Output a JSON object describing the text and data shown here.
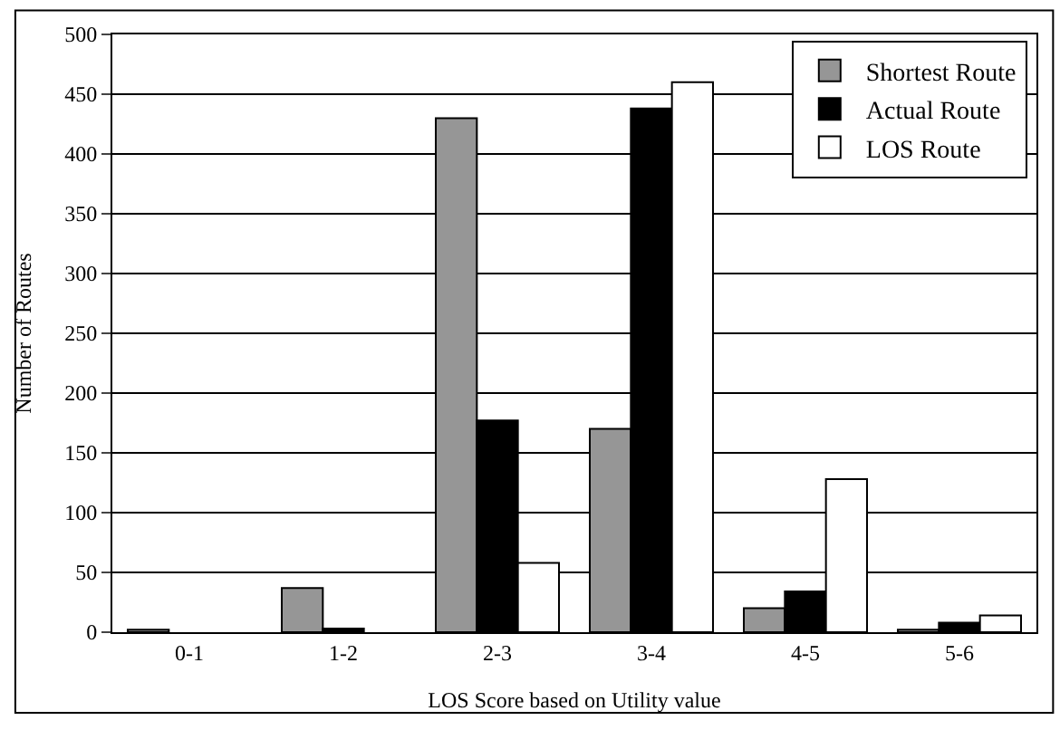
{
  "chart_data": {
    "type": "bar",
    "xlabel": "LOS Score based on Utility value",
    "ylabel": "Number of Routes",
    "categories": [
      "0-1",
      "1-2",
      "2-3",
      "3-4",
      "4-5",
      "5-6"
    ],
    "series": [
      {
        "name": "Shortest Route",
        "color": "#969696",
        "values": [
          2,
          37,
          430,
          170,
          20,
          2
        ]
      },
      {
        "name": "Actual Route",
        "color": "#000000",
        "values": [
          0,
          3,
          177,
          438,
          34,
          8
        ]
      },
      {
        "name": "LOS Route",
        "color": "#ffffff",
        "values": [
          0,
          0,
          58,
          460,
          128,
          14
        ]
      }
    ],
    "ylim": [
      0,
      500
    ],
    "yticks": [
      0,
      50,
      100,
      150,
      200,
      250,
      300,
      350,
      400,
      450,
      500
    ],
    "grid": "y",
    "legend": "top right"
  }
}
